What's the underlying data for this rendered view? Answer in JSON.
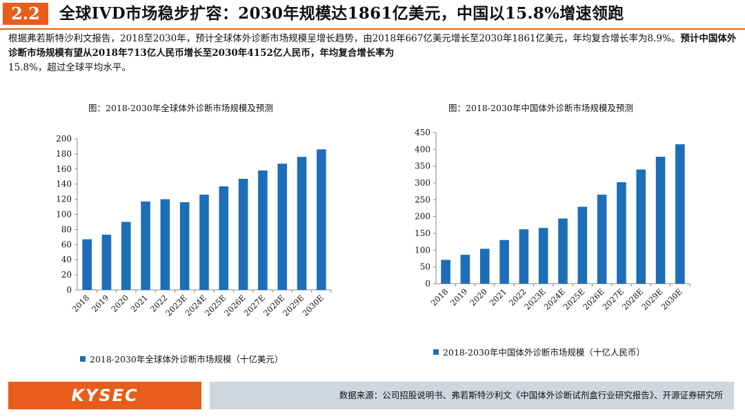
{
  "header": {
    "section_number": "2.2",
    "title": "全球IVD市场稳步扩容：2030年规模达1861亿美元，中国以15.8%增速领跑"
  },
  "intro": {
    "part1": "根据弗若斯特沙利文报告，2018至2030年，预计全球体外诊断市场规模呈增长趋势，由2018年667亿美元增长至2030年1861亿美元，年均复合增长率为8.9%。",
    "part2": "预计中国体外诊断市场规模有望从2018年713亿人民币增长至2030年4152亿人民币，年均复合增长率为",
    "part3": "15.8%，超过全球平均水平。"
  },
  "footer": {
    "logo": "KYSEC",
    "source": "数据来源：公司招股说明书、弗若斯特沙利文《中国体外诊断试剂盒行业研究报告》、开源证券研究所"
  },
  "colors": {
    "accent": "#e85c1c",
    "bar": "#1b6eb7",
    "footer_bg": "#cfd7de"
  },
  "chart_data": [
    {
      "type": "bar",
      "title": "图：2018-2030年全球体外诊断市场规模及预测",
      "categories": [
        "2018",
        "2019",
        "2020",
        "2021",
        "2022",
        "2023E",
        "2024E",
        "2025E",
        "2026E",
        "2027E",
        "2028E",
        "2029E",
        "2030E"
      ],
      "series": [
        {
          "name": "2018-2030年全球体外诊断市场规模（十亿美元）",
          "values": [
            67,
            73,
            90,
            117,
            120,
            116,
            126,
            137,
            147,
            158,
            167,
            176,
            186
          ]
        }
      ],
      "ylim": [
        0,
        200
      ],
      "yticks": [
        0,
        20,
        40,
        60,
        80,
        100,
        120,
        140,
        160,
        180,
        200
      ],
      "legend": "bottom-left"
    },
    {
      "type": "bar",
      "title": "图：2018-2030年中国体外诊断市场规模及预测",
      "categories": [
        "2018",
        "2019",
        "2020",
        "2021",
        "2022",
        "2023E",
        "2024E",
        "2025E",
        "2026E",
        "2027E",
        "2028E",
        "2029E",
        "2030E"
      ],
      "series": [
        {
          "name": "2018-2030年中国体外诊断市场规模（十亿人民币）",
          "values": [
            71,
            86,
            104,
            130,
            162,
            166,
            194,
            229,
            265,
            302,
            340,
            378,
            415
          ]
        }
      ],
      "ylim": [
        0,
        450
      ],
      "yticks": [
        0,
        50,
        100,
        150,
        200,
        250,
        300,
        350,
        400,
        450
      ],
      "legend": "bottom-left"
    }
  ]
}
